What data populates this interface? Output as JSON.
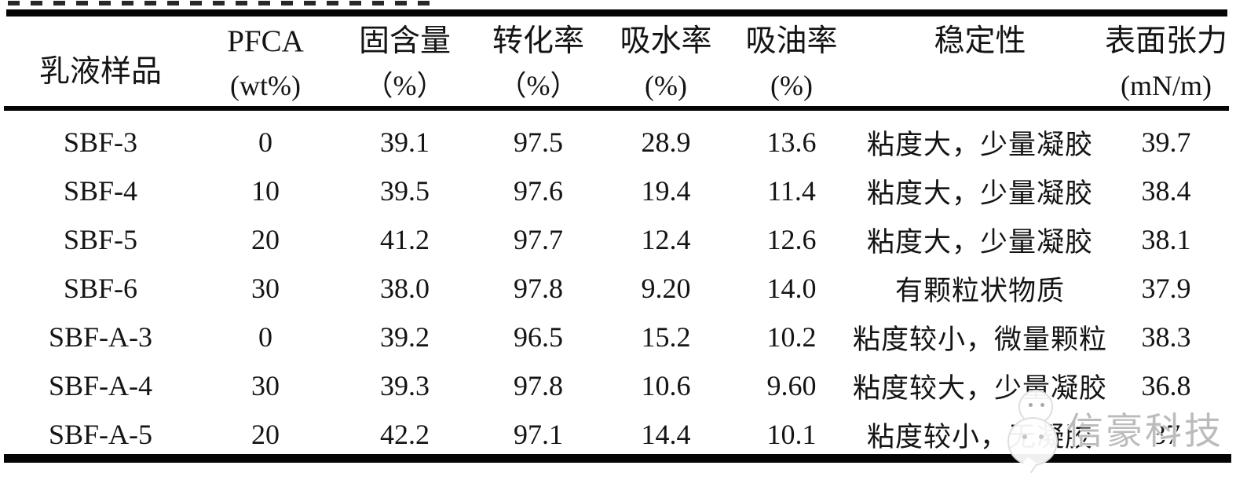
{
  "table": {
    "columns": [
      {
        "label": "乳液样品",
        "unit": ""
      },
      {
        "label": "PFCA",
        "unit": "(wt%)"
      },
      {
        "label": "固含量",
        "unit": "（%）"
      },
      {
        "label": "转化率",
        "unit": "（%）"
      },
      {
        "label": "吸水率",
        "unit": "(%)"
      },
      {
        "label": "吸油率",
        "unit": "(%)"
      },
      {
        "label": "稳定性",
        "unit": ""
      },
      {
        "label": "表面张力",
        "unit": "(mN/m)"
      }
    ],
    "rows": [
      [
        "SBF-3",
        "0",
        "39.1",
        "97.5",
        "28.9",
        "13.6",
        "粘度大，少量凝胶",
        "39.7"
      ],
      [
        "SBF-4",
        "10",
        "39.5",
        "97.6",
        "19.4",
        "11.4",
        "粘度大，少量凝胶",
        "38.4"
      ],
      [
        "SBF-5",
        "20",
        "41.2",
        "97.7",
        "12.4",
        "12.6",
        "粘度大，少量凝胶",
        "38.1"
      ],
      [
        "SBF-6",
        "30",
        "38.0",
        "97.8",
        "9.20",
        "14.0",
        "有颗粒状物质",
        "37.9"
      ],
      [
        "SBF-A-3",
        "0",
        "39.2",
        "96.5",
        "15.2",
        "10.2",
        "粘度较小，微量颗粒",
        "38.3"
      ],
      [
        "SBF-A-4",
        "30",
        "39.3",
        "97.8",
        "10.6",
        "9.60",
        "粘度较大，少量凝胶",
        "36.8"
      ],
      [
        "SBF-A-5",
        "20",
        "42.2",
        "97.1",
        "14.4",
        "10.1",
        "粘度较小，无凝胶",
        "37"
      ]
    ]
  },
  "watermark": {
    "text": "信豪科技",
    "color": "#b2b2b2"
  },
  "colors": {
    "text": "#141414",
    "background": "#ffffff",
    "rule": "#050505"
  }
}
